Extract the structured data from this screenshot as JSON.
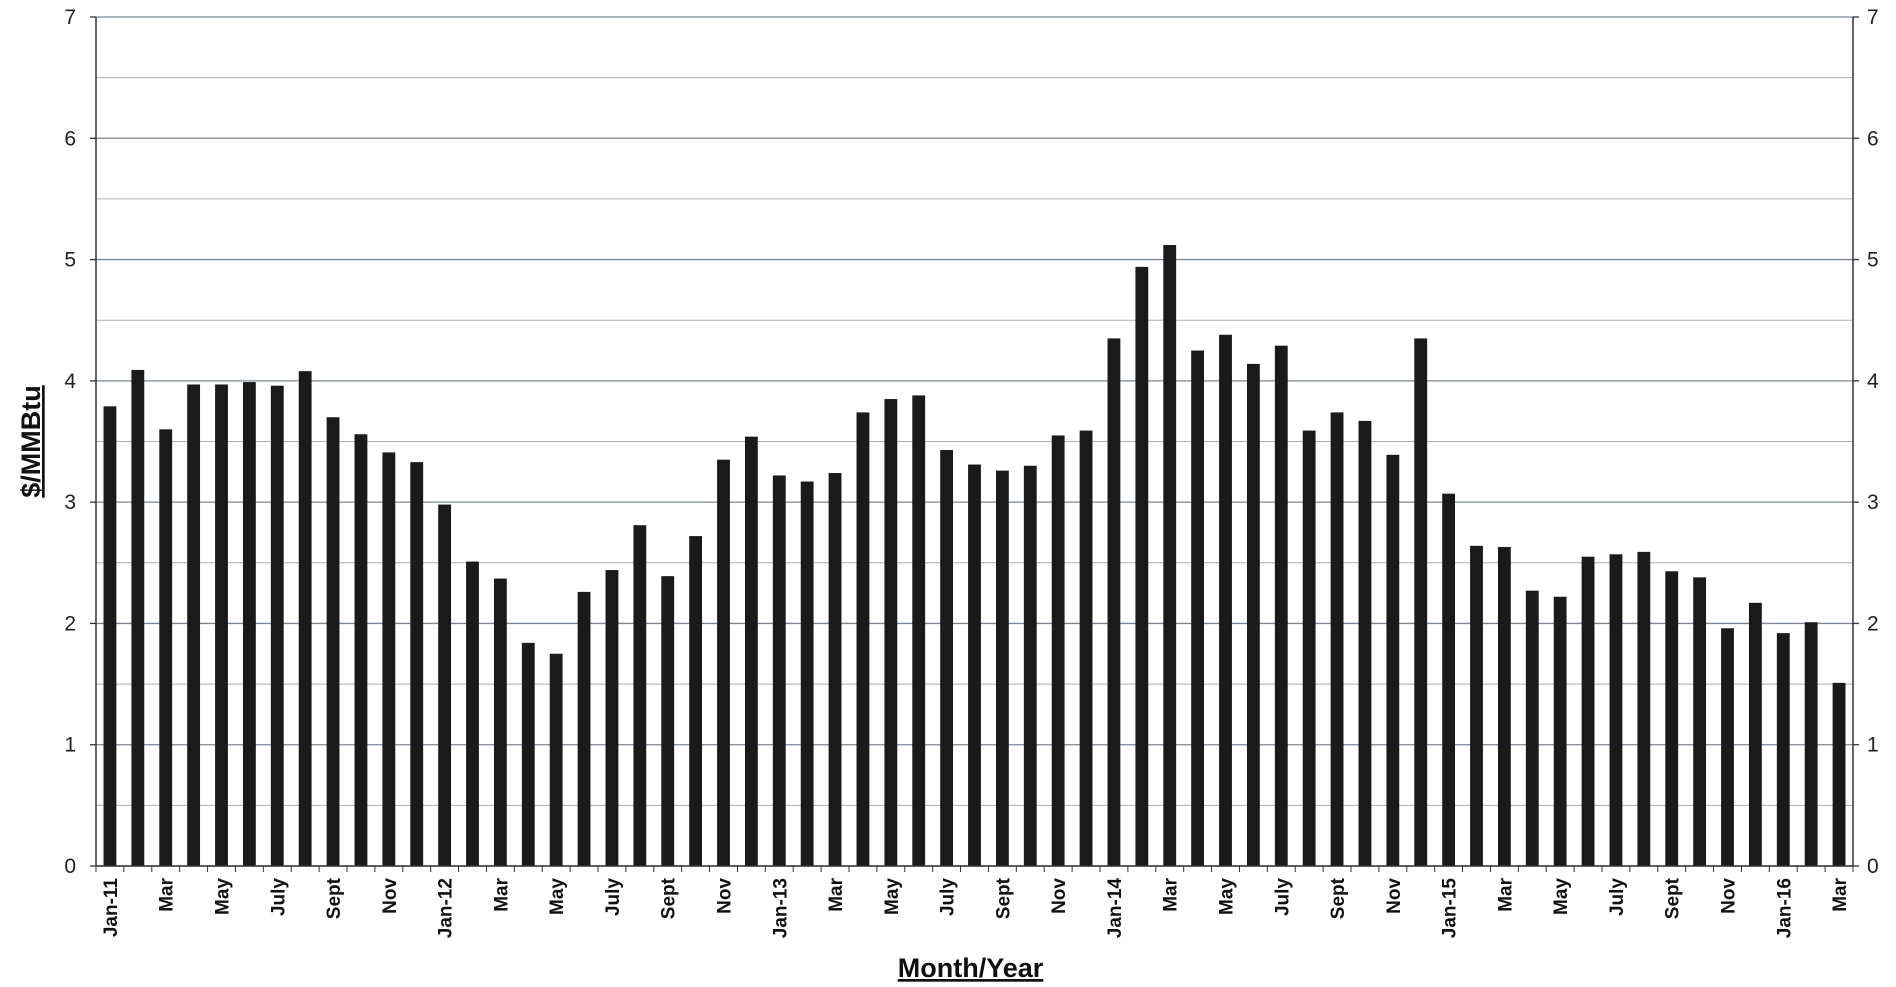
{
  "chart_data": {
    "type": "bar",
    "xlabel": "Month/Year",
    "ylabel": "$/MMBtu",
    "ylim": [
      0,
      7
    ],
    "y_ticks": [
      0,
      1,
      2,
      3,
      4,
      5,
      6,
      7
    ],
    "secondary_y_axis": true,
    "grid": "horizontal, every 0.5",
    "bar_color": "#1a1a1a",
    "categories": [
      "Jan-11",
      "",
      "Mar",
      "",
      "May",
      "",
      "July",
      "",
      "Sept",
      "",
      "Nov",
      "",
      "Jan-12",
      "",
      "Mar",
      "",
      "May",
      "",
      "July",
      "",
      "Sept",
      "",
      "Nov",
      "",
      "Jan-13",
      "",
      "Mar",
      "",
      "May",
      "",
      "July",
      "",
      "Sept",
      "",
      "Nov",
      "",
      "Jan-14",
      "",
      "Mar",
      "",
      "May",
      "",
      "July",
      "",
      "Sept",
      "",
      "Nov",
      "",
      "Jan-15",
      "",
      "Mar",
      "",
      "May",
      "",
      "July",
      "",
      "Sept",
      "",
      "Nov",
      "",
      "Jan-16",
      "",
      "Mar"
    ],
    "values": [
      3.79,
      4.09,
      3.6,
      3.97,
      3.97,
      3.99,
      3.96,
      4.08,
      3.7,
      3.56,
      3.41,
      3.33,
      2.98,
      2.51,
      2.37,
      1.84,
      1.75,
      2.26,
      2.44,
      2.81,
      2.39,
      2.72,
      3.35,
      3.54,
      3.22,
      3.17,
      3.24,
      3.74,
      3.85,
      3.88,
      3.43,
      3.31,
      3.26,
      3.3,
      3.55,
      3.59,
      4.35,
      4.94,
      5.12,
      4.25,
      4.38,
      4.14,
      4.29,
      3.59,
      3.74,
      3.67,
      3.39,
      4.35,
      3.07,
      2.64,
      2.63,
      2.27,
      2.22,
      2.55,
      2.57,
      2.59,
      2.43,
      2.38,
      1.96,
      2.17,
      1.92,
      2.01,
      1.51
    ]
  }
}
